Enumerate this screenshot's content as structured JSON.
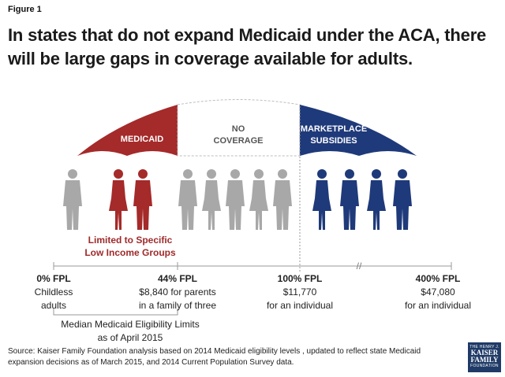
{
  "figure_label": "Figure 1",
  "title": "In states that do not expand Medicaid under the ACA, there will be large gaps in coverage available for adults.",
  "umbrella": {
    "medicaid": "MEDICAID",
    "no_coverage_line1": "NO",
    "no_coverage_line2": "COVERAGE",
    "marketplace_line1": "MARKETPLACE",
    "marketplace_line2": "SUBSIDIES"
  },
  "limited_line1": "Limited to Specific",
  "limited_line2": "Low Income Groups",
  "axis_break": "//",
  "fpl_markers": [
    {
      "line1": "0% FPL",
      "line2": "Childless",
      "line3": "adults"
    },
    {
      "line1": "44% FPL",
      "line2": "$8,840 for parents",
      "line3": "in a family of three"
    },
    {
      "line1": "100% FPL",
      "line2": "$11,770",
      "line3": "for an individual"
    },
    {
      "line1": "400% FPL",
      "line2": "$47,080",
      "line3": "for an individual"
    }
  ],
  "median_line1": "Median Medicaid Eligibility Limits",
  "median_line2": "as of April 2015",
  "source": "Source: Kaiser Family Foundation analysis based on 2014 Medicaid eligibility levels , updated to reflect state Medicaid  expansion decisions as of March 2015, and 2014 Current Population Survey data.",
  "logo": {
    "line1": "THE HENRY J.",
    "line2": "KAISER",
    "line3": "FAMILY",
    "line4": "FOUNDATION"
  },
  "colors": {
    "medicaid": "#a52a2a",
    "marketplace": "#1f3a7a",
    "gray": "#a8a8a8",
    "outline": "#bdbdbd"
  }
}
